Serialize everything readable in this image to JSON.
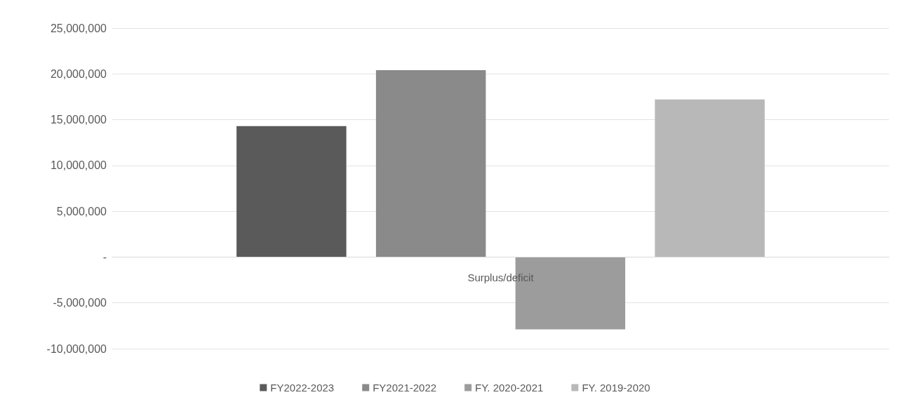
{
  "chart_data": {
    "type": "bar",
    "categories": [
      "Surplus/deficit"
    ],
    "series": [
      {
        "name": "FY2022-2023",
        "color": "#5a5a5a",
        "values": [
          14300000
        ]
      },
      {
        "name": "FY2021-2022",
        "color": "#8a8a8a",
        "values": [
          20400000
        ]
      },
      {
        "name": "FY. 2020-2021",
        "color": "#9c9c9c",
        "values": [
          -7900000
        ]
      },
      {
        "name": "FY. 2019-2020",
        "color": "#b8b8b8",
        "values": [
          17200000
        ]
      }
    ],
    "ylim": [
      -10000000,
      25000000
    ],
    "yticks": [
      {
        "value": -10000000,
        "label": "-10,000,000"
      },
      {
        "value": -5000000,
        "label": "-5,000,000"
      },
      {
        "value": 0,
        "label": "-"
      },
      {
        "value": 5000000,
        "label": "5,000,000"
      },
      {
        "value": 10000000,
        "label": "10,000,000"
      },
      {
        "value": 15000000,
        "label": "15,000,000"
      },
      {
        "value": 20000000,
        "label": "20,000,000"
      },
      {
        "value": 25000000,
        "label": "25,000,000"
      }
    ],
    "grid": "y",
    "legend": "bottom"
  }
}
